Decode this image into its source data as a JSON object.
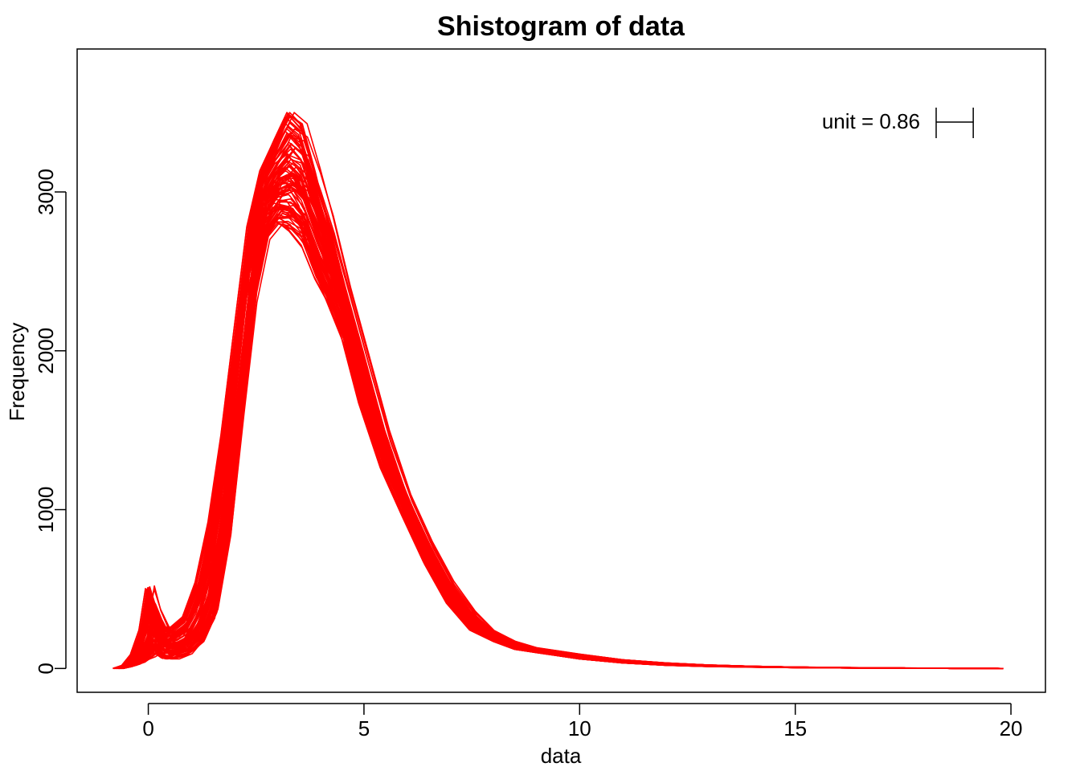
{
  "chart_data": {
    "type": "line",
    "title": "Shistogram of data",
    "xlabel": "data",
    "ylabel": "Frequency",
    "xlim": [
      -1.65,
      20.8
    ],
    "ylim": [
      -150,
      3900
    ],
    "xticks": [
      0,
      5,
      10,
      15,
      20
    ],
    "yticks": [
      0,
      1000,
      2000,
      3000
    ],
    "grid": false,
    "line_color": "#ff0000",
    "unit_annotation": "unit = 0.86",
    "unit_width": 0.86,
    "n_series": 100,
    "series_description": "approximately 100 overlapping density curves (bootstrap shifted histograms), all red",
    "series_envelope": {
      "x": [
        -0.7,
        -0.5,
        -0.3,
        -0.1,
        0.05,
        0.2,
        0.4,
        0.6,
        0.9,
        1.2,
        1.5,
        1.8,
        2.1,
        2.4,
        2.7,
        3.0,
        3.3,
        3.6,
        3.9,
        4.2,
        4.6,
        5.0,
        5.5,
        6.0,
        6.5,
        7.0,
        7.5,
        8.0,
        8.5,
        9.0,
        9.5,
        10.0,
        11.0,
        12.0,
        13.0,
        14.0,
        15.0,
        16.0,
        17.0,
        18.0,
        19.0,
        19.8
      ],
      "lower": [
        0,
        10,
        20,
        40,
        70,
        100,
        60,
        60,
        80,
        140,
        300,
        750,
        1550,
        2300,
        2700,
        2800,
        2750,
        2650,
        2450,
        2300,
        2050,
        1650,
        1250,
        950,
        650,
        400,
        240,
        170,
        120,
        100,
        80,
        60,
        35,
        20,
        12,
        8,
        5,
        3,
        2,
        1,
        0,
        0
      ],
      "upper": [
        0,
        20,
        90,
        250,
        520,
        380,
        260,
        260,
        330,
        560,
        950,
        1500,
        2150,
        2800,
        3150,
        3330,
        3500,
        3430,
        3150,
        2850,
        2400,
        2000,
        1500,
        1100,
        800,
        550,
        360,
        240,
        170,
        130,
        110,
        90,
        55,
        35,
        22,
        14,
        9,
        6,
        4,
        2,
        1,
        0
      ]
    }
  }
}
